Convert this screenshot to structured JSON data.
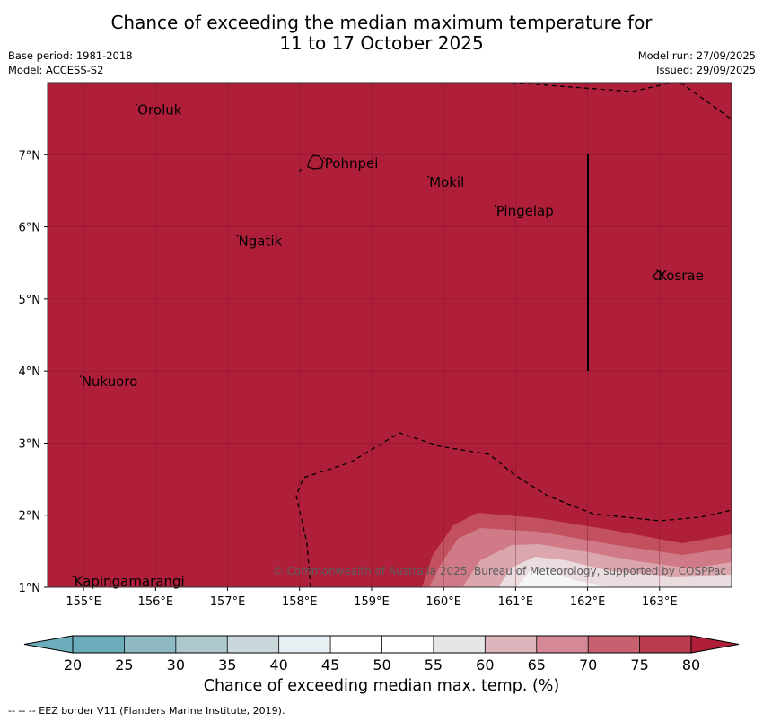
{
  "title": {
    "line1": "Chance of exceeding the median maximum temperature for",
    "line2": "11 to 17 October 2025"
  },
  "meta": {
    "base_period": "Base period: 1981-2018",
    "model": "Model: ACCESS-S2",
    "model_run": "Model run: 27/09/2025",
    "issued": "Issued: 29/09/2025"
  },
  "map": {
    "lon_range": [
      154.5,
      164.0
    ],
    "lat_range": [
      1.0,
      8.0
    ],
    "lon_ticks": [
      "155°E",
      "156°E",
      "157°E",
      "158°E",
      "159°E",
      "160°E",
      "161°E",
      "162°E",
      "163°E"
    ],
    "lat_ticks": [
      "1°N",
      "2°N",
      "3°N",
      "4°N",
      "5°N",
      "6°N",
      "7°N"
    ],
    "places": [
      {
        "name": "Oroluk",
        "lon": 155.75,
        "lat": 7.62
      },
      {
        "name": "Pohnpei",
        "lon": 158.35,
        "lat": 6.88
      },
      {
        "name": "Mokil",
        "lon": 159.8,
        "lat": 6.62
      },
      {
        "name": "Pingelap",
        "lon": 160.73,
        "lat": 6.22
      },
      {
        "name": "Ngatik",
        "lon": 157.15,
        "lat": 5.8
      },
      {
        "name": "Kosrae",
        "lon": 162.98,
        "lat": 5.32
      },
      {
        "name": "Nukuoro",
        "lon": 154.97,
        "lat": 3.85
      },
      {
        "name": "Kapingamarangi",
        "lon": 154.87,
        "lat": 1.08
      }
    ],
    "fill_color": "#b01f3a",
    "copyright": "© Commonwealth of Australia 2025, Bureau of Meteorology, supported by COSPPac"
  },
  "colorbar": {
    "ticks": [
      "20",
      "25",
      "30",
      "35",
      "40",
      "45",
      "50",
      "55",
      "60",
      "65",
      "70",
      "75",
      "80"
    ],
    "colors": [
      "#6badbb",
      "#8fbac5",
      "#adc9cd",
      "#cad8dc",
      "#e8eff2",
      "#ffffff",
      "#ffffff",
      "#e6e6e6",
      "#deb5bd",
      "#d58896",
      "#c8616f",
      "#b83b50"
    ],
    "under_color": "#6badbb",
    "over_color": "#b01f3a",
    "label": "Chance of exceeding median max. temp. (%)"
  },
  "footer": "--  --  -- EEZ border V11 (Flanders Marine Institute, 2019)."
}
